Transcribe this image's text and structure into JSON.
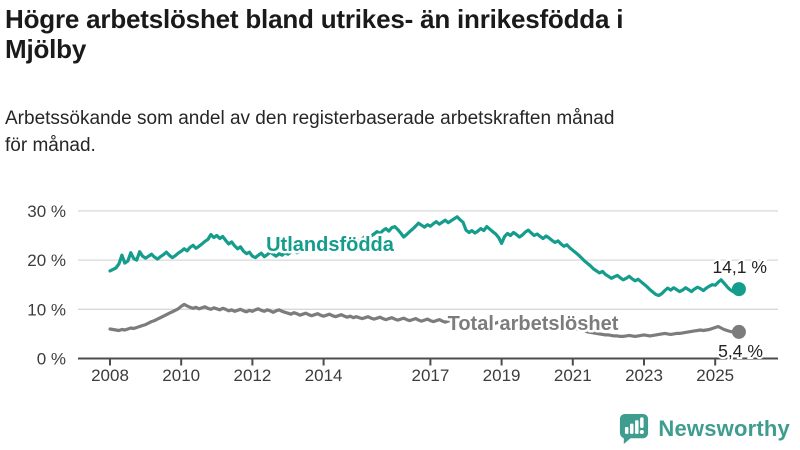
{
  "header": {
    "title_line1": "Högre arbetslöshet bland utrikes- än inrikesfödda i",
    "title_line2": "Mjölby",
    "subtitle_line1": "Arbetssökande som andel av den registerbaserade arbetskraften månad",
    "subtitle_line2": "för månad."
  },
  "branding": {
    "logo_text": "Newsworthy",
    "logo_color": "#3f9d90",
    "logo_icon": "bar-chart-speech-bubble-icon"
  },
  "colors": {
    "title": "#1a1a1a",
    "subtitle": "#262626",
    "grid": "#d8d8d8",
    "axis": "#4c4c4c",
    "tick_label": "#3d3d3d",
    "value_label": "#222222",
    "background": "#ffffff"
  },
  "chart_data": {
    "type": "line",
    "title": "Högre arbetslöshet bland utrikes- än inrikesfödda i Mjölby",
    "subtitle": "Arbetssökande som andel av den registerbaserade arbetskraften månad för månad.",
    "x_unit": "month",
    "x_start": {
      "year": 2008,
      "month": 1
    },
    "x_end": {
      "year": 2025,
      "month": 9
    },
    "x_ticks": [
      2008,
      2010,
      2012,
      2014,
      2017,
      2019,
      2021,
      2023,
      2025
    ],
    "y_ticks": [
      0,
      10,
      20,
      30
    ],
    "y_tick_suffix": " %",
    "ylim": [
      0,
      32
    ],
    "grid": true,
    "label_style": "inline",
    "series": [
      {
        "name": "Utlandsfödda",
        "color": "#149c8c",
        "end_value": 14.1,
        "end_label": "14,1 %",
        "values": [
          17.8,
          18.1,
          18.4,
          19.2,
          21.0,
          19.4,
          19.8,
          21.5,
          20.3,
          20.0,
          21.7,
          20.8,
          20.4,
          20.8,
          21.2,
          20.6,
          20.2,
          20.7,
          21.1,
          21.6,
          21.0,
          20.5,
          20.9,
          21.4,
          21.8,
          22.3,
          21.9,
          22.6,
          23.0,
          22.4,
          22.8,
          23.3,
          23.8,
          24.2,
          25.2,
          24.6,
          25.0,
          24.4,
          24.8,
          24.0,
          23.3,
          23.7,
          22.9,
          22.3,
          22.7,
          21.8,
          21.3,
          21.6,
          20.8,
          20.5,
          21.0,
          21.4,
          20.7,
          21.1,
          21.6,
          21.2,
          20.8,
          21.3,
          21.0,
          21.5,
          21.2,
          21.6,
          22.0,
          21.5,
          21.8,
          22.3,
          21.9,
          22.4,
          22.1,
          22.5,
          22.2,
          22.6,
          22.3,
          22.8,
          23.2,
          22.7,
          23.1,
          23.5,
          23.0,
          23.4,
          23.9,
          23.5,
          24.0,
          23.6,
          23.9,
          24.3,
          24.8,
          24.4,
          24.9,
          25.3,
          25.8,
          25.4,
          26.0,
          26.4,
          25.9,
          26.6,
          26.8,
          26.2,
          25.5,
          24.7,
          25.2,
          25.8,
          26.3,
          26.9,
          27.5,
          27.1,
          26.7,
          27.2,
          26.9,
          27.4,
          27.8,
          27.3,
          27.7,
          28.1,
          27.6,
          28.0,
          28.4,
          28.8,
          28.2,
          27.7,
          26.1,
          25.6,
          26.0,
          25.5,
          25.9,
          26.4,
          26.0,
          26.8,
          26.3,
          25.8,
          25.3,
          24.6,
          23.4,
          24.8,
          25.4,
          25.0,
          25.6,
          25.2,
          24.7,
          25.1,
          25.7,
          26.1,
          25.5,
          25.0,
          25.3,
          24.8,
          24.4,
          24.9,
          24.5,
          24.0,
          23.6,
          23.9,
          23.3,
          22.8,
          23.1,
          22.5,
          22.0,
          21.5,
          21.0,
          20.4,
          19.8,
          19.3,
          18.8,
          18.2,
          17.8,
          17.4,
          17.7,
          17.1,
          16.7,
          16.3,
          16.6,
          16.9,
          16.4,
          16.0,
          16.3,
          16.7,
          16.2,
          15.8,
          16.1,
          15.6,
          15.1,
          14.6,
          14.0,
          13.5,
          13.0,
          12.8,
          13.2,
          13.8,
          14.3,
          13.9,
          14.4,
          14.0,
          13.6,
          13.9,
          14.4,
          14.0,
          13.6,
          14.1,
          14.5,
          14.2,
          13.8,
          14.3,
          14.7,
          15.0,
          14.9,
          15.5,
          16.0,
          15.3,
          14.6,
          14.0,
          13.6,
          13.7,
          14.1
        ]
      },
      {
        "name": "Total arbetslöshet",
        "color": "#7c7c7c",
        "end_value": 5.4,
        "end_label": "5,4 %",
        "values": [
          6.0,
          5.9,
          5.8,
          5.7,
          5.9,
          5.8,
          6.0,
          6.2,
          6.1,
          6.3,
          6.5,
          6.7,
          6.9,
          7.2,
          7.5,
          7.7,
          8.0,
          8.3,
          8.6,
          8.9,
          9.2,
          9.5,
          9.8,
          10.1,
          10.6,
          11.0,
          10.7,
          10.4,
          10.2,
          10.4,
          10.1,
          10.3,
          10.5,
          10.2,
          10.0,
          10.3,
          10.1,
          9.9,
          10.2,
          10.0,
          9.7,
          9.9,
          9.6,
          9.8,
          10.0,
          9.7,
          9.5,
          9.8,
          9.6,
          9.9,
          10.1,
          9.8,
          9.6,
          9.9,
          9.7,
          9.4,
          9.7,
          9.9,
          9.6,
          9.4,
          9.2,
          9.0,
          9.3,
          9.1,
          8.8,
          9.0,
          9.2,
          8.9,
          8.7,
          8.9,
          9.1,
          8.8,
          8.6,
          8.8,
          9.0,
          8.7,
          8.5,
          8.7,
          8.9,
          8.6,
          8.4,
          8.6,
          8.3,
          8.5,
          8.3,
          8.1,
          8.3,
          8.5,
          8.2,
          8.0,
          8.2,
          8.4,
          8.1,
          7.9,
          8.1,
          8.3,
          8.0,
          7.8,
          8.0,
          8.2,
          7.9,
          7.7,
          7.9,
          8.1,
          7.8,
          7.6,
          7.8,
          8.0,
          7.7,
          7.5,
          7.7,
          7.9,
          7.6,
          7.4,
          7.6,
          7.8,
          7.5,
          7.3,
          7.5,
          7.7,
          7.4,
          7.2,
          7.4,
          7.6,
          7.3,
          7.1,
          7.3,
          7.5,
          7.2,
          7.0,
          7.2,
          7.4,
          7.1,
          6.9,
          7.1,
          7.3,
          7.0,
          6.8,
          7.0,
          7.2,
          6.9,
          6.7,
          6.9,
          7.1,
          7.2,
          7.4,
          7.7,
          8.0,
          7.8,
          7.6,
          7.4,
          7.2,
          7.0,
          6.8,
          6.6,
          6.4,
          6.2,
          6.0,
          5.9,
          5.7,
          5.6,
          5.4,
          5.3,
          5.2,
          5.1,
          5.0,
          4.9,
          4.8,
          4.8,
          4.7,
          4.6,
          4.6,
          4.5,
          4.5,
          4.6,
          4.7,
          4.6,
          4.5,
          4.6,
          4.7,
          4.8,
          4.7,
          4.6,
          4.7,
          4.8,
          4.9,
          5.0,
          5.1,
          5.0,
          4.9,
          5.0,
          5.1,
          5.1,
          5.2,
          5.3,
          5.4,
          5.5,
          5.6,
          5.7,
          5.8,
          5.7,
          5.8,
          5.9,
          6.1,
          6.3,
          6.5,
          6.2,
          5.9,
          5.7,
          5.5,
          5.4,
          5.5,
          5.4
        ]
      }
    ]
  }
}
